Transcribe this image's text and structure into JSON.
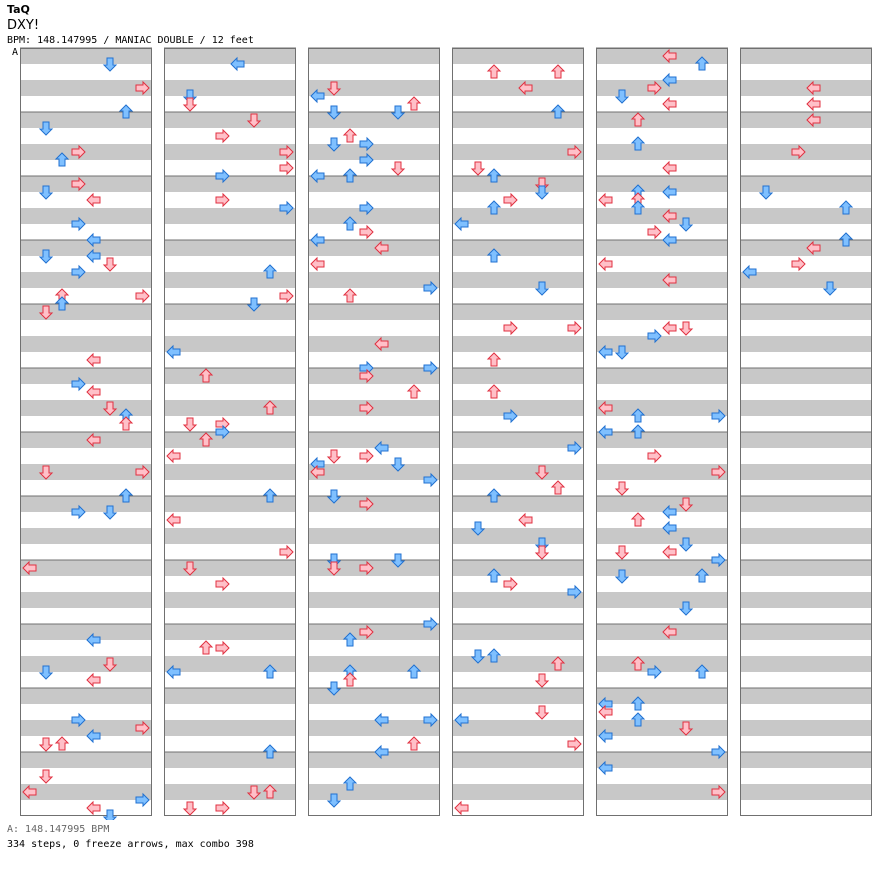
{
  "header": {
    "artist": "TaQ",
    "title": "DXY!",
    "info": "BPM: 148.147995 / MANIAC DOUBLE / 12 feet"
  },
  "bpm_marker": {
    "label": "A"
  },
  "footer": {
    "bpm_line": "A: 148.147995 BPM",
    "stats_line": "334 steps, 0 freeze arrows, max combo 398"
  },
  "colors": {
    "red_fill": "#ffc0c8",
    "red_stroke": "#e03040",
    "blue_fill": "#7fc0ff",
    "blue_stroke": "#2070d0",
    "row_gray": "#c8c8c8",
    "border": "#707070"
  },
  "chart_data": {
    "type": "step-chart",
    "panels": [
      "L-left",
      "L-down",
      "L-up",
      "L-right",
      "R-left",
      "R-down",
      "R-up",
      "R-right"
    ],
    "columns": 6,
    "measures_per_column": 12,
    "bpm": 148.147995,
    "steps": 334,
    "freeze_arrows": 0,
    "max_combo": 398,
    "notes_sample": [
      [
        0,
        0,
        3
      ],
      [
        0,
        0,
        4
      ],
      [
        0,
        3,
        1
      ],
      [
        0,
        4,
        3
      ],
      [
        0,
        4,
        5
      ],
      [
        0,
        5,
        6
      ],
      [
        1,
        0,
        4
      ],
      [
        1,
        4,
        0
      ],
      [
        1,
        4,
        2
      ],
      [
        1,
        5,
        2
      ],
      [
        1,
        6,
        4
      ],
      [
        1,
        6,
        7
      ]
    ]
  }
}
